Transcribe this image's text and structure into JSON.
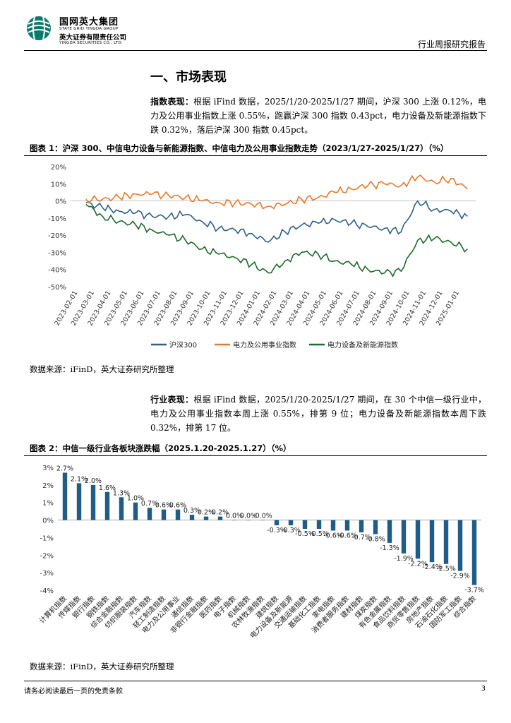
{
  "header": {
    "company_cn": "国网英大集团",
    "company_en": "STATE GRID YINGDA GROUP",
    "securities_cn": "英大证券有限责任公司",
    "securities_en": "YINGDA SECURITIES CO., LTD.",
    "report_type": "行业周报研究报告"
  },
  "section": {
    "title": "一、市场表现",
    "para1_label": "指数表现：",
    "para1_text": "根据 iFind 数据，2025/1/20-2025/1/27 期间，沪深 300 上涨 0.12%，电力及公用事业指数上涨 0.55%，跑赢沪深 300 指数 0.43pct，电力设备及新能源指数下跌 0.32%，落后沪深 300 指数 0.45pct。",
    "para2_label": "行业表现：",
    "para2_text": "根据 iFind 数据，2025/1/20-2025/1/27 期间，在 30 个中信一级行业中，电力及公用事业指数本周上涨 0.55%，排第 9 位；电力设备及新能源指数本周下跌 0.32%，排第 17 位。"
  },
  "figure1": {
    "title": "图表 1：沪深 300、中信电力设备与新能源指数、中信电力及公用事业指数走势（2023/1/27-2025/1/27）（%）",
    "source": "数据来源：iFinD，英大证券研究所整理"
  },
  "figure2": {
    "title": "图表 2：中信一级行业各板块涨跌幅（2025.1.20-2025.1.27）（%）",
    "source": "数据来源：iFinD，英大证券研究所整理"
  },
  "footer": {
    "disclaimer": "请务必阅读最后一页的免责条款",
    "page": "3"
  },
  "chart_data": [
    {
      "type": "line",
      "title": "沪深 300、中信电力设备与新能源指数、中信电力及公用事业指数走势（2023/1/27-2025/1/27）（%）",
      "ylim": [
        -50,
        20
      ],
      "yticks": [
        "20%",
        "10%",
        "0%",
        "-10%",
        "-20%",
        "-30%",
        "-40%",
        "-50%"
      ],
      "ytick_values": [
        20,
        10,
        0,
        -10,
        -20,
        -30,
        -40,
        -50
      ],
      "x": [
        "2023-02-01",
        "2023-03-01",
        "2023-04-01",
        "2023-05-01",
        "2023-06-01",
        "2023-07-01",
        "2023-08-01",
        "2023-09-01",
        "2023-10-01",
        "2023-11-01",
        "2023-12-01",
        "2024-01-01",
        "2024-02-01",
        "2024-03-01",
        "2024-04-01",
        "2024-05-01",
        "2024-06-01",
        "2024-07-01",
        "2024-08-01",
        "2024-09-01",
        "2024-10-01",
        "2024-11-01",
        "2024-12-01",
        "2025-01-01"
      ],
      "series": [
        {
          "name": "沪深300",
          "color": "#2e5f8a",
          "values": [
            -1,
            -4,
            -6,
            -7,
            -9,
            -9,
            -8,
            -12,
            -16,
            -17,
            -19,
            -24,
            -18,
            -14,
            -13,
            -11,
            -13,
            -15,
            -16,
            -18,
            0,
            -5,
            -6,
            -9
          ]
        },
        {
          "name": "电力及公用事业指数",
          "color": "#e8792b",
          "values": [
            1,
            1,
            2,
            4,
            4,
            3,
            2,
            0,
            -1,
            -1,
            -2,
            -3,
            -2,
            1,
            2,
            5,
            7,
            9,
            10,
            9,
            14,
            11,
            13,
            7
          ]
        },
        {
          "name": "电力设备及新能源指数",
          "color": "#1d6a2b",
          "values": [
            -2,
            -9,
            -12,
            -14,
            -17,
            -20,
            -23,
            -28,
            -31,
            -33,
            -37,
            -42,
            -35,
            -30,
            -31,
            -35,
            -37,
            -40,
            -42,
            -41,
            -23,
            -22,
            -24,
            -28
          ]
        }
      ]
    },
    {
      "type": "bar",
      "title": "中信一级行业各板块涨跌幅（2025.1.20-2025.1.27）（%）",
      "ylim": [
        -4,
        3
      ],
      "yticks": [
        "3%",
        "2%",
        "1%",
        "0%",
        "-1%",
        "-2%",
        "-3%",
        "-4%"
      ],
      "ytick_values": [
        3,
        2,
        1,
        0,
        -1,
        -2,
        -3,
        -4
      ],
      "bar_color": "#1f5d86",
      "categories": [
        "计算机指数",
        "传媒指数",
        "银行指数",
        "钢铁指数",
        "综合金融指数",
        "纺织服装指数",
        "汽车指数",
        "轻工制造指数",
        "电力及公用事业",
        "通信指数",
        "非银行金融指数",
        "医药指数",
        "电子指数",
        "机械指数",
        "农林牧渔指数",
        "建筑指数",
        "电力设备及新能源",
        "交通运输指数",
        "基础化工指数",
        "家电指数",
        "消费者服务指数",
        "建材指数",
        "煤炭指数",
        "有色金属指数",
        "食品饮料指数",
        "商贸零售指数",
        "房地产指数",
        "石油石化指数",
        "国防军工指数",
        "综合指数"
      ],
      "values": [
        2.7,
        2.1,
        2.0,
        1.6,
        1.3,
        1.0,
        0.7,
        0.6,
        0.6,
        0.3,
        0.2,
        0.2,
        0.0,
        0.0,
        -0.0,
        -0.3,
        -0.3,
        -0.5,
        -0.5,
        -0.6,
        -0.6,
        -0.7,
        -0.8,
        -1.3,
        -1.9,
        -2.2,
        -2.4,
        -2.5,
        -2.9,
        -3.7
      ],
      "labels": [
        "2.7%",
        "2.1%",
        "2.0%",
        "1.6%",
        "1.3%",
        "1.0%",
        "0.7%",
        "0.6%",
        "0.6%",
        "0.3%",
        "0.2%",
        "0.2%",
        "0.0%",
        "0.0%",
        "-0.0%",
        "-0.3%",
        "-0.3%",
        "-0.5%",
        "-0.5%",
        "-0.6%",
        "-0.6%",
        "-0.7%",
        "-0.8%",
        "-1.3%",
        "-1.9%",
        "-2.2%",
        "-2.4%",
        "-2.5%",
        "-2.9%",
        "-3.7%"
      ]
    }
  ]
}
